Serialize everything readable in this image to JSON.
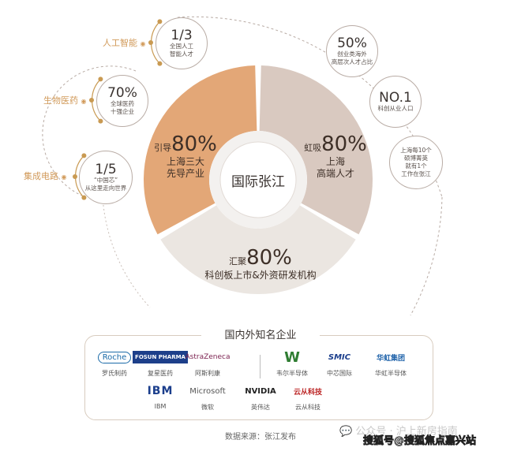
{
  "colors": {
    "orange": "#e3a777",
    "taupe": "#d9c9c0",
    "light": "#ebe6e1",
    "gold": "#c99a52",
    "outline": "#b9aca5"
  },
  "center": {
    "title": "国际张江"
  },
  "segments": [
    {
      "prefix": "引导",
      "value": "80%",
      "lines": [
        "上海三大",
        "先导产业"
      ]
    },
    {
      "prefix": "虹吸",
      "value": "80%",
      "lines": [
        "上海",
        "高端人才"
      ]
    },
    {
      "prefix": "汇聚",
      "value": "80%",
      "lines": [
        "科创板上市&外资研发机构"
      ]
    }
  ],
  "left_bubbles": [
    {
      "category": "人工智能",
      "value": "1/3",
      "lines": [
        "全国人工",
        "智能人才"
      ]
    },
    {
      "category": "生物医药",
      "value": "70%",
      "lines": [
        "全球医药",
        "十强企业"
      ]
    },
    {
      "category": "集成电路",
      "value": "1/5",
      "lines": [
        "“中国芯”",
        "从这里走向世界"
      ]
    }
  ],
  "right_bubbles": [
    {
      "value": "50%",
      "lines": [
        "创业类海外",
        "高层次人才占比"
      ]
    },
    {
      "value": "NO.1",
      "lines": [
        "科创从业人口"
      ]
    },
    {
      "lines": [
        "上海每10个",
        "硕博菁英",
        "就有1个",
        "工作在张江"
      ]
    }
  ],
  "companies": {
    "title": "国内外知名企业",
    "row1": [
      {
        "logo": "Roche",
        "name": "罗氏制药"
      },
      {
        "logo": "FOSUN PHARMA",
        "name": "复星医药"
      },
      {
        "logo": "AstraZeneca",
        "name": "阿斯利康"
      },
      {
        "logo": "W",
        "name": "韦尔半导体"
      },
      {
        "logo": "SMIC",
        "name": "中芯国际"
      },
      {
        "logo": "华虹集团",
        "name": "华虹半导体"
      }
    ],
    "row2": [
      {
        "logo": "IBM",
        "name": "IBM"
      },
      {
        "logo": "Microsoft",
        "name": "微软"
      },
      {
        "logo": "NVIDIA",
        "name": "英伟达"
      },
      {
        "logo": "云从科技",
        "name": "云从科技"
      }
    ]
  },
  "source": "数据来源：张江发布",
  "watermarks": [
    "公众号 · 沪上新房指南",
    "搜狐号@搜狐焦点嘉兴站"
  ]
}
